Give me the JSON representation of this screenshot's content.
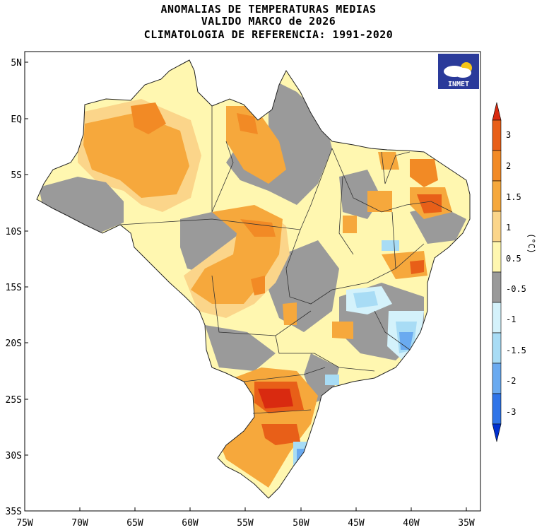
{
  "header": {
    "line1": "ANOMALIAS DE TEMPERATURAS MEDIAS",
    "line2": "VALIDO MARCO de 2026",
    "line3": "CLIMATOLOGIA DE REFERENCIA: 1991-2020"
  },
  "logo": {
    "text": "INMET",
    "bg": "#2a3a9a"
  },
  "axes": {
    "lat_labels": [
      "5N",
      "EQ",
      "5S",
      "10S",
      "15S",
      "20S",
      "25S",
      "30S",
      "35S"
    ],
    "lon_labels": [
      "75W",
      "70W",
      "65W",
      "60W",
      "55W",
      "50W",
      "45W",
      "40W",
      "35W"
    ]
  },
  "colorbar": {
    "unit": "(°C)",
    "colors": [
      "#0030d0",
      "#2f74e8",
      "#6aaaf0",
      "#a8dcf5",
      "#d4f2fb",
      "#9a9a9a",
      "#fff7b0",
      "#fbd58a",
      "#f6a83c",
      "#f28a25",
      "#e85f18",
      "#d92a10"
    ],
    "labels": [
      "3",
      "2",
      "1.5",
      "1",
      "0.5",
      "-0.5",
      "-1",
      "-1.5",
      "-2",
      "-3"
    ]
  }
}
